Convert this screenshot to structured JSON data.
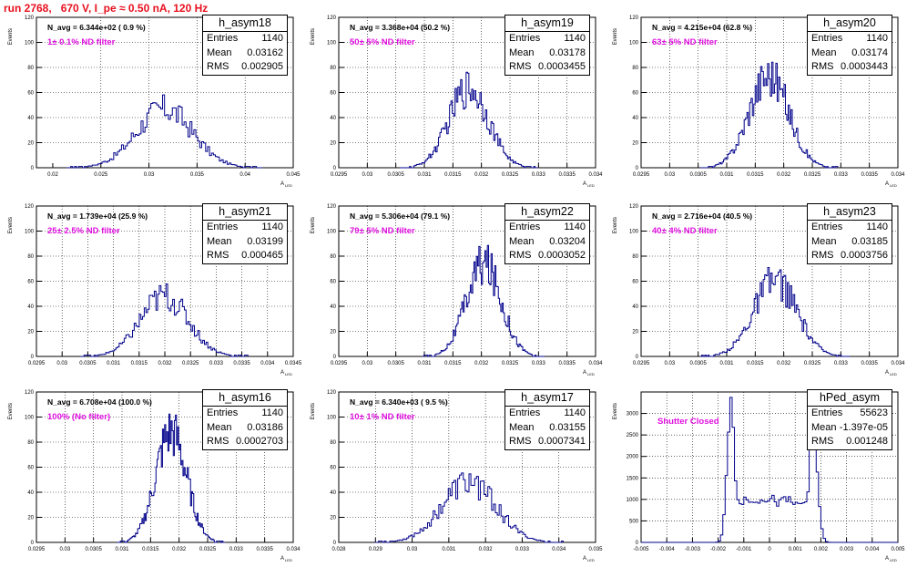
{
  "title": "run 2768,   670 V, I_pe ≈ 0.50 nA, 120 Hz",
  "colors": {
    "title": "#e8101e",
    "hist": "#00008b",
    "filter_text": "#e010e0",
    "grid": "#000000"
  },
  "y_axis_label": "Events",
  "x_axis_label": "A",
  "x_axis_sub": "LED",
  "chart_data": [
    {
      "type": "bar",
      "hist": "h_asym18",
      "navg": "N_avg = 6.344e+02 ( 0.9 %)",
      "filter": "1± 0.1% ND filter",
      "entries": "1140",
      "mean": "0.03162",
      "rms": "0.002905",
      "xlim": [
        0.0183,
        0.045
      ],
      "ylim": [
        0,
        120
      ],
      "xticks": [
        0.02,
        0.025,
        0.03,
        0.035,
        0.04,
        0.045
      ],
      "xtick_labels": [
        "0.02",
        "0.025",
        "0.03",
        "0.035",
        "0.04",
        "0.045"
      ],
      "yticks": [
        0,
        20,
        40,
        60,
        80,
        100,
        120
      ],
      "ytick_labels": [
        "0",
        "20",
        "40",
        "60",
        "80",
        "100",
        "120"
      ],
      "mean_val": 0.03162,
      "rms_val": 0.002905,
      "peak": 47,
      "shape": "gauss"
    },
    {
      "type": "bar",
      "hist": "h_asym19",
      "navg": "N_avg = 3.368e+04 (50.2 %)",
      "filter": "50± 5% ND filter",
      "entries": "1140",
      "mean": "0.03178",
      "rms": "0.0003455",
      "xlim": [
        0.0295,
        0.034
      ],
      "ylim": [
        0,
        120
      ],
      "xticks": [
        0.0295,
        0.03,
        0.0305,
        0.031,
        0.0315,
        0.032,
        0.0325,
        0.033,
        0.0335,
        0.034
      ],
      "xtick_labels": [
        "0.0295",
        "0.03",
        "0.0305",
        "0.031",
        "0.0315",
        "0.032",
        "0.0325",
        "0.033",
        "0.0335",
        "0.034"
      ],
      "yticks": [
        0,
        20,
        40,
        60,
        80,
        100,
        120
      ],
      "ytick_labels": [
        "0",
        "20",
        "40",
        "60",
        "80",
        "100",
        "120"
      ],
      "mean_val": 0.03178,
      "rms_val": 0.0003455,
      "peak": 64,
      "shape": "gauss"
    },
    {
      "type": "bar",
      "hist": "h_asym20",
      "navg": "N_avg = 4.215e+04 (62.8 %)",
      "filter": "63± 5% ND filter",
      "entries": "1140",
      "mean": "0.03174",
      "rms": "0.0003443",
      "xlim": [
        0.0295,
        0.034
      ],
      "ylim": [
        0,
        120
      ],
      "xticks": [
        0.0295,
        0.03,
        0.0305,
        0.031,
        0.0315,
        0.032,
        0.0325,
        0.033,
        0.0335,
        0.034
      ],
      "xtick_labels": [
        "0.0295",
        "0.03",
        "0.0305",
        "0.031",
        "0.0315",
        "0.032",
        "0.0325",
        "0.033",
        "0.0335",
        "0.034"
      ],
      "yticks": [
        0,
        20,
        40,
        60,
        80,
        100,
        120
      ],
      "ytick_labels": [
        "0",
        "20",
        "40",
        "60",
        "80",
        "100",
        "120"
      ],
      "mean_val": 0.03174,
      "rms_val": 0.0003443,
      "peak": 74,
      "shape": "gauss"
    },
    {
      "type": "bar",
      "hist": "h_asym21",
      "navg": "N_avg = 1.739e+04 (25.9 %)",
      "filter": "25± 2.5% ND filter",
      "entries": "1140",
      "mean": "0.03199",
      "rms": "0.000465",
      "xlim": [
        0.0295,
        0.0345
      ],
      "ylim": [
        0,
        120
      ],
      "xticks": [
        0.0295,
        0.03,
        0.0305,
        0.031,
        0.0315,
        0.032,
        0.0325,
        0.033,
        0.0335,
        0.034,
        0.0345
      ],
      "xtick_labels": [
        "0.0295",
        "0.03",
        "0.0305",
        "0.031",
        "0.0315",
        "0.032",
        "0.0325",
        "0.033",
        "0.0335",
        "0.034",
        "0.0345"
      ],
      "yticks": [
        0,
        20,
        40,
        60,
        80,
        100,
        120
      ],
      "ytick_labels": [
        "0",
        "20",
        "40",
        "60",
        "80",
        "100",
        "120"
      ],
      "mean_val": 0.03199,
      "rms_val": 0.000465,
      "peak": 48,
      "shape": "gauss"
    },
    {
      "type": "bar",
      "hist": "h_asym22",
      "navg": "N_avg = 5.306e+04 (79.1 %)",
      "filter": "79± 5% ND filter",
      "entries": "1140",
      "mean": "0.03204",
      "rms": "0.0003052",
      "xlim": [
        0.0295,
        0.034
      ],
      "ylim": [
        0,
        120
      ],
      "xticks": [
        0.0295,
        0.03,
        0.0305,
        0.031,
        0.0315,
        0.032,
        0.0325,
        0.033,
        0.0335,
        0.034
      ],
      "xtick_labels": [
        "0.0295",
        "0.03",
        "0.0305",
        "0.031",
        "0.0315",
        "0.032",
        "0.0325",
        "0.033",
        "0.0335",
        "0.034"
      ],
      "yticks": [
        0,
        20,
        40,
        60,
        80,
        100,
        120
      ],
      "ytick_labels": [
        "0",
        "20",
        "40",
        "60",
        "80",
        "100",
        "120"
      ],
      "mean_val": 0.03204,
      "rms_val": 0.0003052,
      "peak": 74,
      "shape": "gauss"
    },
    {
      "type": "bar",
      "hist": "h_asym23",
      "navg": "N_avg = 2.716e+04 (40.5 %)",
      "filter": "40± 4% ND filter",
      "entries": "1140",
      "mean": "0.03185",
      "rms": "0.0003756",
      "xlim": [
        0.0295,
        0.034
      ],
      "ylim": [
        0,
        120
      ],
      "xticks": [
        0.0295,
        0.03,
        0.0305,
        0.031,
        0.0315,
        0.032,
        0.0325,
        0.033,
        0.0335,
        0.034
      ],
      "xtick_labels": [
        "0.0295",
        "0.03",
        "0.0305",
        "0.031",
        "0.0315",
        "0.032",
        "0.0325",
        "0.033",
        "0.0335",
        "0.034"
      ],
      "yticks": [
        0,
        20,
        40,
        60,
        80,
        100,
        120
      ],
      "ytick_labels": [
        "0",
        "20",
        "40",
        "60",
        "80",
        "100",
        "120"
      ],
      "mean_val": 0.03185,
      "rms_val": 0.0003756,
      "peak": 60,
      "shape": "gauss"
    },
    {
      "type": "bar",
      "hist": "h_asym16",
      "navg": "N_avg = 6.708e+04 (100.0 %)",
      "filter": "100% (No filter)",
      "entries": "1140",
      "mean": "0.03186",
      "rms": "0.0002703",
      "xlim": [
        0.0295,
        0.034
      ],
      "ylim": [
        0,
        120
      ],
      "xticks": [
        0.0295,
        0.03,
        0.0305,
        0.031,
        0.0315,
        0.032,
        0.0325,
        0.033,
        0.0335,
        0.034
      ],
      "xtick_labels": [
        "0.0295",
        "0.03",
        "0.0305",
        "0.031",
        "0.0315",
        "0.032",
        "0.0325",
        "0.033",
        "0.0335",
        "0.034"
      ],
      "yticks": [
        0,
        20,
        40,
        60,
        80,
        100,
        120
      ],
      "ytick_labels": [
        "0",
        "20",
        "40",
        "60",
        "80",
        "100",
        "120"
      ],
      "mean_val": 0.03186,
      "rms_val": 0.0002703,
      "peak": 88,
      "shape": "gauss"
    },
    {
      "type": "bar",
      "hist": "h_asym17",
      "navg": "N_avg = 6.340e+03 ( 9.5 %)",
      "filter": "10± 1% ND filter",
      "entries": "1140",
      "mean": "0.03155",
      "rms": "0.0007341",
      "xlim": [
        0.028,
        0.035
      ],
      "ylim": [
        0,
        120
      ],
      "xticks": [
        0.028,
        0.029,
        0.03,
        0.031,
        0.032,
        0.033,
        0.034,
        0.035
      ],
      "xtick_labels": [
        "0.028",
        "0.029",
        "0.03",
        "0.031",
        "0.032",
        "0.033",
        "0.034",
        "0.035"
      ],
      "yticks": [
        0,
        20,
        40,
        60,
        80,
        100,
        120
      ],
      "ytick_labels": [
        "0",
        "20",
        "40",
        "60",
        "80",
        "100",
        "120"
      ],
      "mean_val": 0.03155,
      "rms_val": 0.0007341,
      "peak": 48,
      "shape": "gauss"
    },
    {
      "type": "bar",
      "hist": "hPed_asym",
      "navg": "",
      "filter": "Shutter Closed",
      "entries": "55623",
      "mean": "-1.397e-05",
      "rms": "0.001248",
      "xlim": [
        -0.005,
        0.005
      ],
      "ylim": [
        0,
        3500
      ],
      "xticks": [
        -0.005,
        -0.004,
        -0.003,
        -0.002,
        -0.001,
        0,
        0.001,
        0.002,
        0.003,
        0.004,
        0.005
      ],
      "xtick_labels": [
        "-0.005",
        "-0.004",
        "-0.003",
        "-0.002",
        "-0.001",
        "0",
        "0.001",
        "0.002",
        "0.003",
        "0.004",
        "0.005"
      ],
      "yticks": [
        0,
        500,
        1000,
        1500,
        2000,
        2500,
        3000
      ],
      "ytick_labels": [
        "0",
        "500",
        "1000",
        "1500",
        "2000",
        "2500",
        "3000"
      ],
      "mean_val": -1.397e-05,
      "rms_val": 0.001248,
      "peak": 3200,
      "shape": "ped"
    }
  ]
}
